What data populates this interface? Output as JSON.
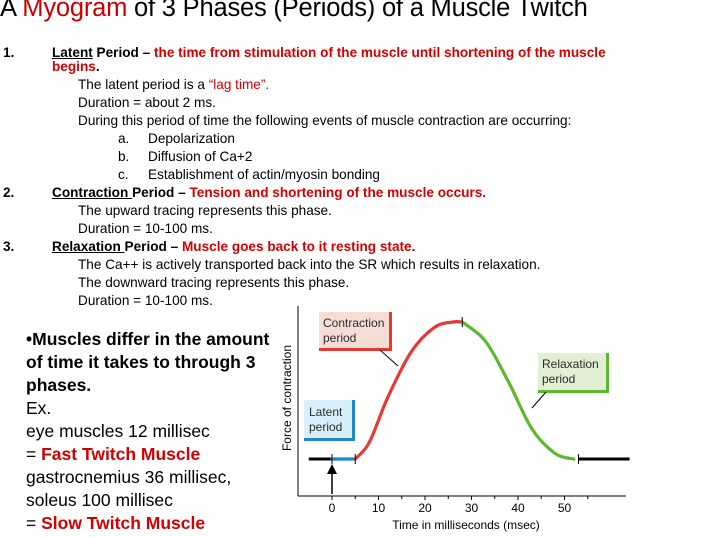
{
  "title": {
    "prefix": "A ",
    "highlight": "Myogram",
    "rest": " of 3 Phases (Periods) of a Muscle Twitch"
  },
  "items": [
    {
      "number": "1.",
      "name": "Latent",
      "period_word": " Period – ",
      "definition_line1": "the time from stimulation of the muscle until shortening of the muscle",
      "definition_line2": "begins",
      "definition_end": ".",
      "details": [
        {
          "plain": "The latent period is a ",
          "red": "“lag time”."
        },
        {
          "plain": "Duration = about 2 ms."
        },
        {
          "plain": "During this period of time the following events of muscle contraction are occurring:"
        }
      ],
      "subitems": [
        {
          "letter": "a.",
          "text": "Depolarization"
        },
        {
          "letter": "b.",
          "text": "Diffusion of Ca+2"
        },
        {
          "letter": "c.",
          "text": "Establishment of actin/myosin bonding"
        }
      ]
    },
    {
      "number": "2.",
      "name": "Contraction ",
      "period_word": "Period – ",
      "definition_line1": "Tension and shortening of the muscle occurs.",
      "details": [
        {
          "plain": "The upward tracing represents this phase."
        },
        {
          "plain": "Duration = 10-100 ms."
        }
      ]
    },
    {
      "number": "3.",
      "name": "Relaxation ",
      "period_word": "Period – ",
      "definition_line1": "Muscle goes back to it resting state.",
      "details": [
        {
          "plain": "The Ca++  is actively transported back into the SR which results in relaxation."
        },
        {
          "plain": "The downward tracing represents this phase."
        },
        {
          "plain": "Duration = 10-100 ms."
        }
      ]
    }
  ],
  "note": {
    "lead": "•Muscles differ in the amount of time it takes to through 3 phases.",
    "ex": "Ex.",
    "line1": "eye muscles 12 millisec",
    "eq1": "= ",
    "fast": "Fast Twitch Muscle",
    "line2": "gastrocnemius 36 millisec,",
    "line3": "soleus 100 millisec",
    "eq2": "= ",
    "slow": "Slow Twitch Muscle"
  },
  "chart_data": {
    "type": "line",
    "ylabel": "Force of contraction",
    "xlabel": "Time in milliseconds (msec)",
    "xticks": [
      "0",
      "10",
      "20",
      "30",
      "40",
      "50"
    ],
    "xlim": [
      -5,
      64
    ],
    "series": [
      {
        "name": "Latent period",
        "color": "#1e88c8",
        "x": [
          0,
          5
        ],
        "y": [
          0,
          0
        ]
      },
      {
        "name": "Contraction period",
        "color": "#e53935",
        "x": [
          5,
          8,
          12,
          17,
          22,
          26,
          28
        ],
        "y": [
          0,
          0.12,
          0.45,
          0.78,
          0.96,
          1.0,
          1.0
        ]
      },
      {
        "name": "Relaxation period",
        "color": "#5cb82e",
        "x": [
          28,
          33,
          38,
          43,
          48,
          52
        ],
        "y": [
          1.0,
          0.86,
          0.56,
          0.22,
          0.04,
          0.0
        ]
      }
    ],
    "baseline_color": "#000000",
    "labels": {
      "contraction": [
        "Contraction",
        "period"
      ],
      "latent": [
        "Latent",
        "period"
      ],
      "relaxation": [
        "Relaxation",
        "period"
      ]
    }
  }
}
